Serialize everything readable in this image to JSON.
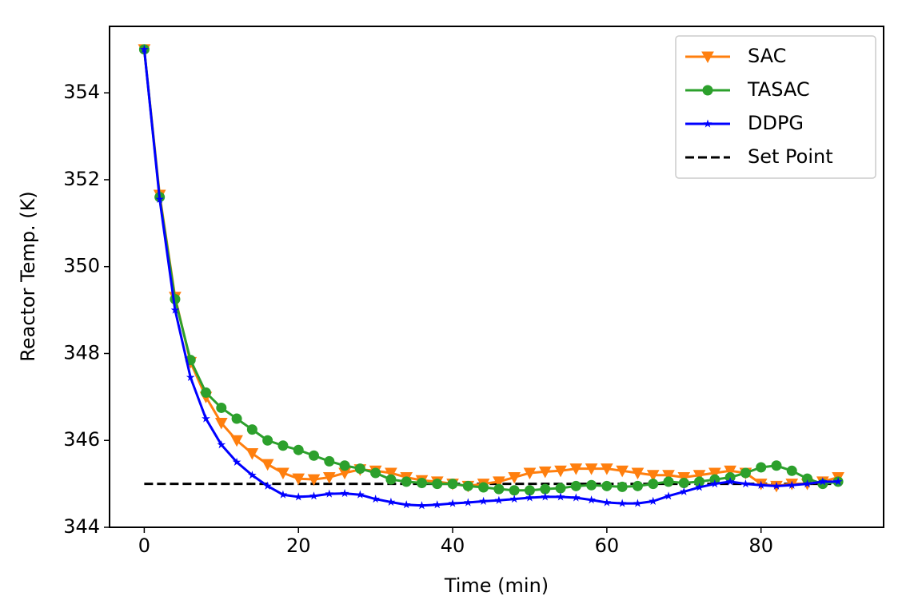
{
  "chart_data": {
    "type": "line",
    "x_label": "Time (min)",
    "y_label": "Reactor Temp. (K)",
    "x": [
      0,
      2,
      4,
      6,
      8,
      10,
      12,
      14,
      16,
      18,
      20,
      22,
      24,
      26,
      28,
      30,
      32,
      34,
      36,
      38,
      40,
      42,
      44,
      46,
      48,
      50,
      52,
      54,
      56,
      58,
      60,
      62,
      64,
      66,
      68,
      70,
      72,
      74,
      76,
      78,
      80,
      82,
      84,
      86,
      88,
      90
    ],
    "series": [
      {
        "name": "SAC",
        "color": "#ff7f0e",
        "marker": "triangle-down",
        "values": [
          355,
          351.65,
          349.3,
          347.8,
          347.0,
          346.4,
          346.0,
          345.7,
          345.45,
          345.25,
          345.12,
          345.1,
          345.15,
          345.25,
          345.33,
          345.3,
          345.25,
          345.15,
          345.08,
          345.05,
          345.0,
          344.95,
          345.0,
          345.05,
          345.15,
          345.25,
          345.28,
          345.3,
          345.35,
          345.35,
          345.35,
          345.3,
          345.25,
          345.2,
          345.2,
          345.15,
          345.2,
          345.25,
          345.3,
          345.25,
          345.0,
          344.95,
          345.0,
          345.0,
          345.05,
          345.15
        ]
      },
      {
        "name": "TASAC",
        "color": "#2ca02c",
        "marker": "circle",
        "values": [
          355,
          351.6,
          349.25,
          347.85,
          347.1,
          346.75,
          346.5,
          346.25,
          346.0,
          345.88,
          345.78,
          345.65,
          345.52,
          345.42,
          345.35,
          345.25,
          345.1,
          345.05,
          345.02,
          345.0,
          345.0,
          344.95,
          344.92,
          344.88,
          344.85,
          344.85,
          344.88,
          344.9,
          344.95,
          344.97,
          344.95,
          344.93,
          344.95,
          345.0,
          345.05,
          345.02,
          345.05,
          345.1,
          345.15,
          345.25,
          345.38,
          345.42,
          345.3,
          345.12,
          345.0,
          345.05
        ]
      },
      {
        "name": "DDPG",
        "color": "#0000ff",
        "marker": "star",
        "values": [
          355,
          351.55,
          349.0,
          347.45,
          346.5,
          345.9,
          345.5,
          345.2,
          344.95,
          344.75,
          344.7,
          344.72,
          344.77,
          344.78,
          344.75,
          344.65,
          344.58,
          344.52,
          344.5,
          344.52,
          344.55,
          344.57,
          344.6,
          344.62,
          344.65,
          344.68,
          344.7,
          344.7,
          344.68,
          344.63,
          344.57,
          344.55,
          344.55,
          344.6,
          344.72,
          344.82,
          344.92,
          345.0,
          345.05,
          345.0,
          344.97,
          344.95,
          344.97,
          345.0,
          345.05,
          345.05
        ]
      }
    ],
    "set_point": {
      "name": "Set Point",
      "value": 345,
      "color": "#000000"
    },
    "xlim": [
      -4.5,
      95.9
    ],
    "ylim": [
      344,
      355.53
    ],
    "xticks": [
      0,
      20,
      40,
      60,
      80
    ],
    "yticks": [
      344,
      346,
      348,
      350,
      352,
      354
    ],
    "legend": "upper right",
    "grid": false
  }
}
